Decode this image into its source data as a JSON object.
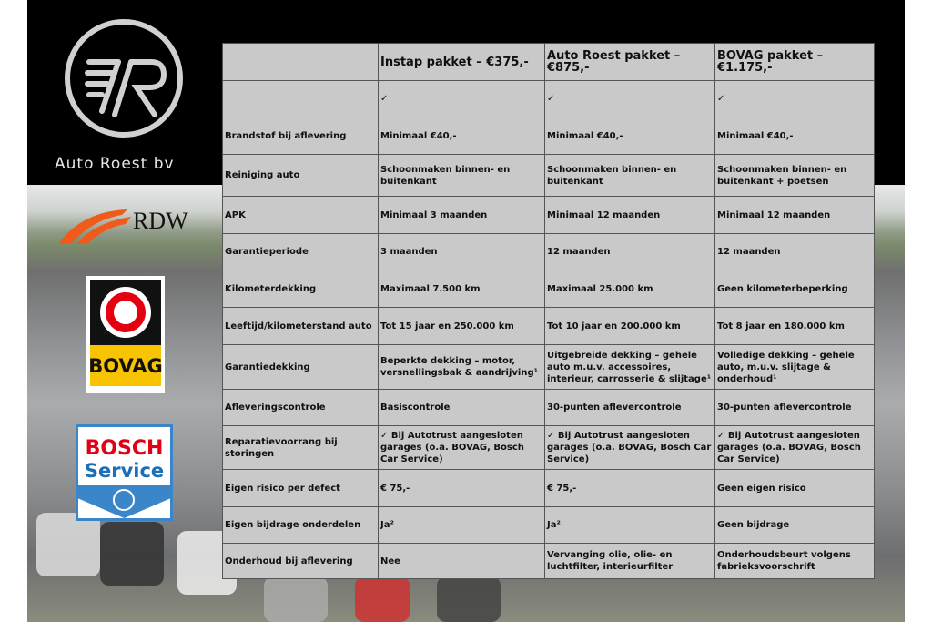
{
  "brand": {
    "name": "Auto Roest bv",
    "logo_letters": "R",
    "rdw": "RDW",
    "bovag": "BOVAG",
    "bosch_line1": "BOSCH",
    "bosch_line2": "Service"
  },
  "colors": {
    "table_bg": "#c9c9c9",
    "bovag_yellow": "#f8c300",
    "bovag_red": "#e3000f",
    "bosch_red": "#e20015",
    "bosch_blue": "#1c6fb5",
    "rdw_orange": "#f05a1a"
  },
  "table": {
    "headers": [
      "",
      "Instap pakket – €375,-",
      "Auto Roest pakket – €875,-",
      "BOVAG pakket – €1.175,-"
    ],
    "rows": [
      [
        "",
        "✓",
        "✓",
        "✓"
      ],
      [
        "Brandstof bij aflevering",
        "Minimaal €40,-",
        "Minimaal €40,-",
        "Minimaal €40,-"
      ],
      [
        "Reiniging auto",
        "Schoonmaken binnen- en buitenkant",
        "Schoonmaken binnen- en buitenkant",
        "Schoonmaken binnen- en buitenkant + poetsen"
      ],
      [
        "APK",
        "Minimaal 3 maanden",
        "Minimaal 12 maanden",
        "Minimaal 12 maanden"
      ],
      [
        "Garantieperiode",
        "3 maanden",
        "12 maanden",
        "12 maanden"
      ],
      [
        "Kilometerdekking",
        "Maximaal 7.500 km",
        "Maximaal 25.000 km",
        "Geen kilometerbeperking"
      ],
      [
        "Leeftijd/kilometerstand auto",
        "Tot 15 jaar en 250.000 km",
        "Tot 10 jaar en 200.000 km",
        "Tot 8 jaar en 180.000 km"
      ],
      [
        "Garantiedekking",
        "Beperkte dekking – motor, versnellingsbak & aandrijving¹",
        "Uitgebreide dekking – gehele auto m.u.v. accessoires, interieur, carrosserie & slijtage¹",
        "Volledige dekking – gehele auto, m.u.v. slijtage & onderhoud¹"
      ],
      [
        "Afleveringscontrole",
        "Basiscontrole",
        "30-punten aflevercontrole",
        "30-punten aflevercontrole"
      ],
      [
        "Reparatievoorrang bij storingen",
        "✓ Bij Autotrust aangesloten garages (o.a. BOVAG, Bosch Car Service)",
        "✓ Bij Autotrust aangesloten garages (o.a. BOVAG, Bosch Car Service)",
        "✓ Bij Autotrust aangesloten garages (o.a. BOVAG, Bosch Car Service)"
      ],
      [
        "Eigen risico per defect",
        "€ 75,-",
        "€ 75,-",
        "Geen eigen risico"
      ],
      [
        "Eigen bijdrage onderdelen",
        "Ja²",
        "Ja²",
        "Geen bijdrage"
      ],
      [
        "Onderhoud bij aflevering",
        "Nee",
        "Vervanging olie, olie- en luchtfilter, interieurfilter",
        "Onderhoudsbeurt volgens fabrieksvoorschrift"
      ]
    ]
  }
}
